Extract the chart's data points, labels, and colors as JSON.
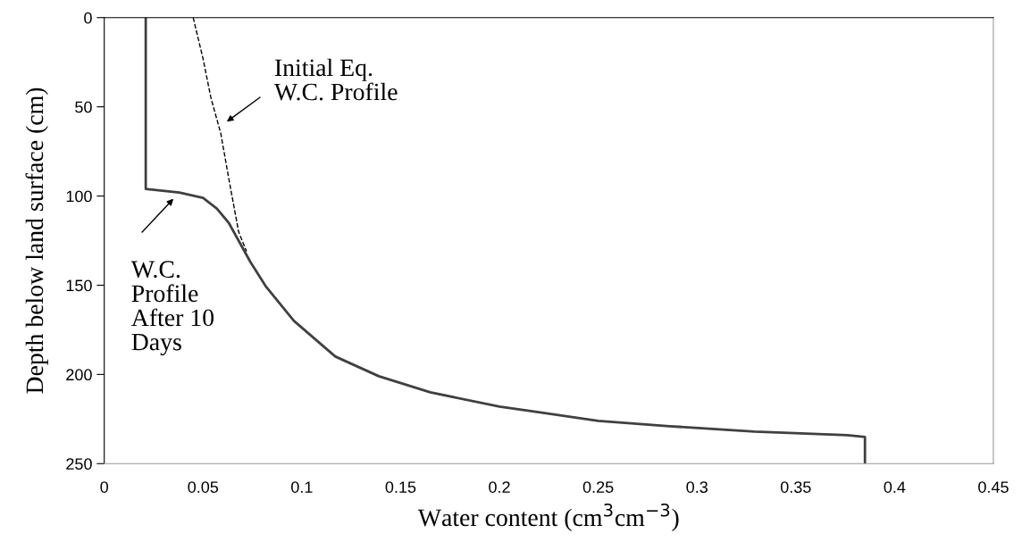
{
  "chart_data": {
    "type": "line",
    "xlabel": "Water content (cm$^{3}$cm$^{−3}$)",
    "ylabel": "Depth below land surface (cm)",
    "xlim": [
      0,
      0.45
    ],
    "xticks": [
      0,
      0.05,
      0.1,
      0.15,
      0.2,
      0.25,
      0.3,
      0.35,
      0.4,
      0.45
    ],
    "ylim": [
      250,
      0
    ],
    "yticks": [
      0,
      50,
      100,
      150,
      200,
      250
    ],
    "grid": false,
    "legend": false,
    "marker": "none",
    "series": [
      {
        "color": "#404040",
        "line_style": "solid",
        "x": [
          0.021,
          0.021,
          0.038,
          0.05,
          0.057,
          0.063,
          0.069,
          0.074,
          0.082,
          0.096,
          0.117,
          0.139,
          0.165,
          0.2,
          0.219,
          0.25,
          0.286,
          0.329,
          0.376,
          0.385,
          0.385
        ],
        "values": [
          0,
          96,
          98,
          101,
          107,
          115,
          127,
          137,
          151,
          170,
          190,
          201,
          210,
          218,
          221,
          226,
          229,
          232,
          234,
          235,
          250
        ]
      },
      {
        "color": "#000000",
        "line_style": "dashed",
        "x": [
          0.045,
          0.05,
          0.054,
          0.059,
          0.063,
          0.068,
          0.072
        ],
        "values": [
          0,
          23,
          45,
          65,
          90,
          120,
          131
        ]
      }
    ],
    "annotations": [
      {
        "text": "Initial Eq.\nW.C. Profile",
        "x": 0.06,
        "y": 60
      },
      {
        "text": "W.C.\nProfile\nAfter 10\nDays",
        "x": 0.038,
        "y": 98
      }
    ]
  }
}
